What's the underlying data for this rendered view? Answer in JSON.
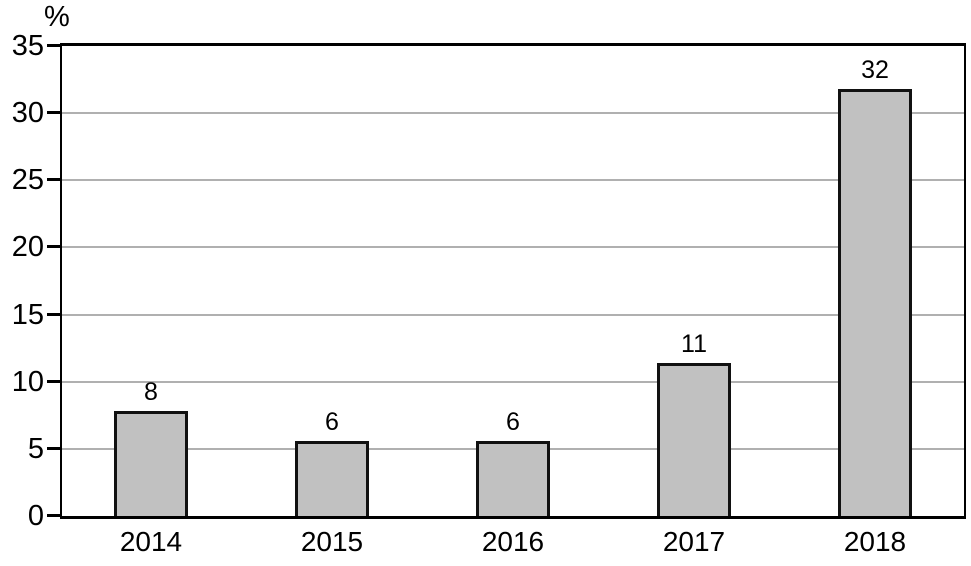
{
  "chart_data": {
    "type": "bar",
    "title": "",
    "xlabel": "",
    "ylabel": "%",
    "categories": [
      "2014",
      "2015",
      "2016",
      "2017",
      "2018"
    ],
    "values": [
      8,
      6,
      6,
      11,
      32
    ],
    "values_precise": [
      7.8,
      5.6,
      5.6,
      11.4,
      31.8
    ],
    "data_labels": [
      "8",
      "6",
      "6",
      "11",
      "32"
    ],
    "ylim": [
      0,
      35
    ],
    "yticks": [
      0,
      5,
      10,
      15,
      20,
      25,
      30,
      35
    ],
    "grid": "horizontal",
    "legend_position": "none",
    "bar_fill_color": "#c1c1c1",
    "bar_border_color": "#111111",
    "gridline_color": "#b0b0b0",
    "axis_color": "#000000",
    "background_color": "#ffffff"
  }
}
